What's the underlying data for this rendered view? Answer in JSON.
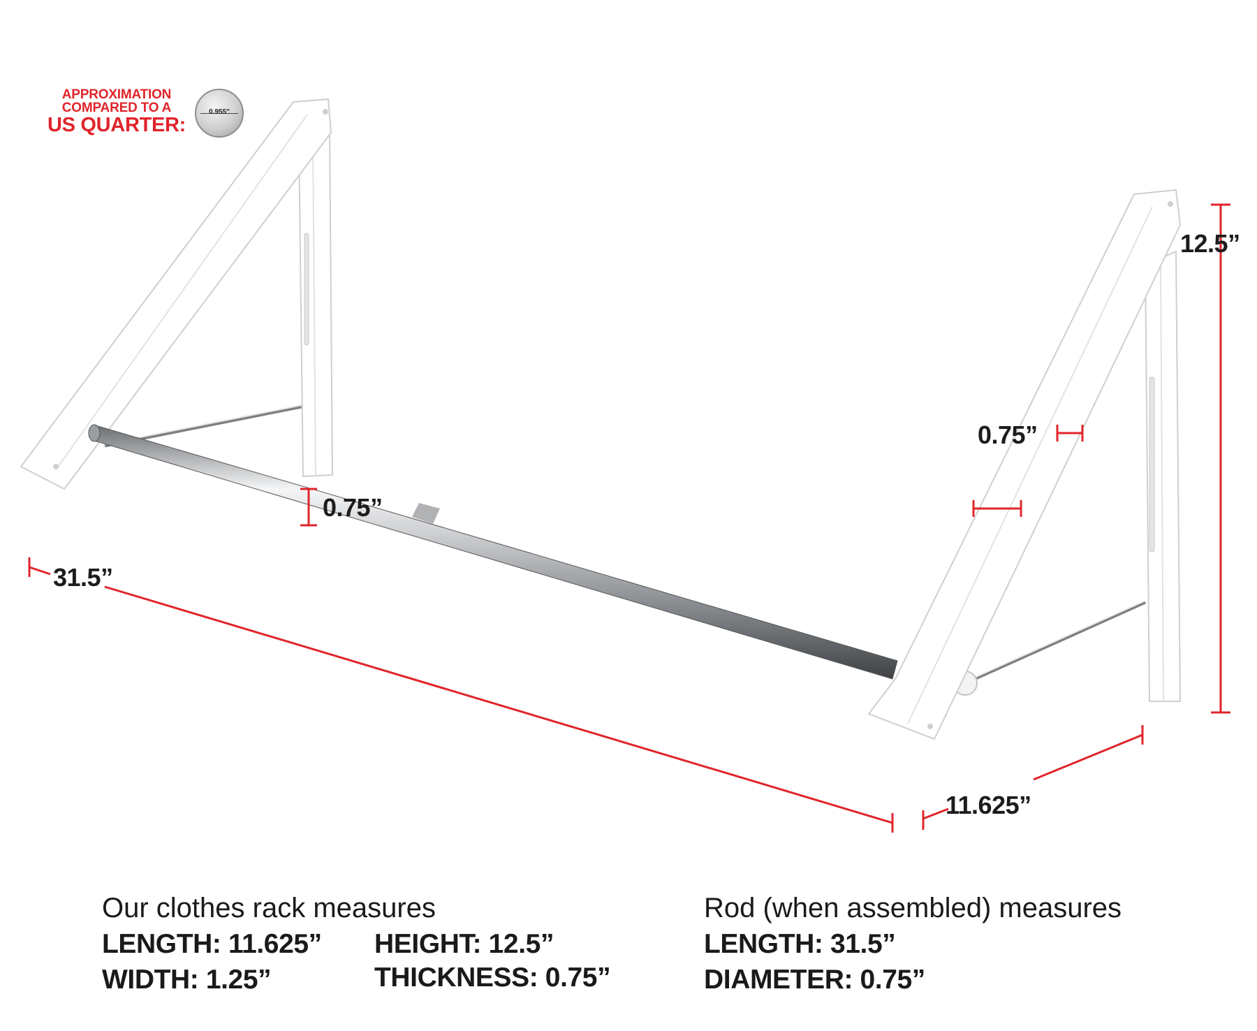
{
  "quarter_note": {
    "line1": "APPROXIMATION",
    "line2": "COMPARED TO A",
    "line3": "US QUARTER:",
    "coin_label": "0.955\""
  },
  "dimensions": {
    "height": "12.5”",
    "bracket_thickness": "0.75”",
    "rod_diameter": "0.75”",
    "rod_length": "31.5”",
    "rack_length": "11.625”"
  },
  "specs_rack": {
    "heading": "Our clothes rack measures",
    "length": "LENGTH: 11.625”",
    "width": "WIDTH: 1.25”",
    "height": "HEIGHT: 12.5”",
    "thickness": "THICKNESS: 0.75”"
  },
  "specs_rod": {
    "heading": "Rod (when assembled) measures",
    "length": "LENGTH: 31.5”",
    "diameter": "DIAMETER: 0.75”"
  },
  "colors": {
    "accent_red": "#e0252b",
    "text": "#1a1a1a",
    "bracket_white": "#ffffff",
    "chrome": "#b9bcc0"
  }
}
